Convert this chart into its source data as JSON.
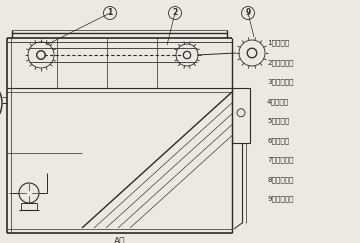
{
  "background_color": "#ede8e0",
  "line_color": "#2a2a2a",
  "legend_items": [
    "1、刷渣板",
    "2、刷渣链条",
    "3、检修爬梯",
    "4、刷渣板",
    "5、溶气罐",
    "6、溶气泵",
    "7、控制系统",
    "8、链条支座",
    "9、驱动电机"
  ],
  "bottom_label": "A向",
  "label1_text": "1",
  "label2_text": "2",
  "label9_text": "9"
}
